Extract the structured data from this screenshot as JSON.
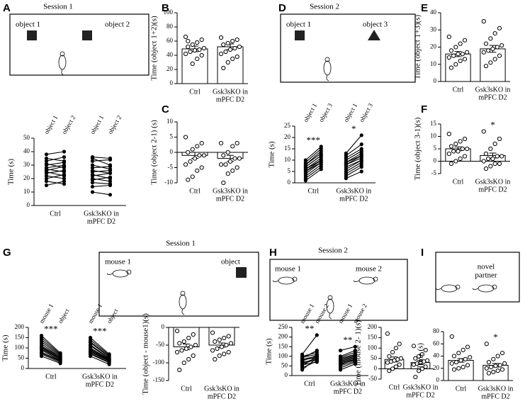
{
  "panel_letters": [
    "A",
    "B",
    "C",
    "D",
    "E",
    "F",
    "G",
    "H",
    "I"
  ],
  "diagrams": [
    {
      "title": "Session 1",
      "labels": [
        "object 1",
        "object 2"
      ]
    },
    {
      "title": "Session 2",
      "labels": [
        "object 1",
        "object 3"
      ]
    },
    {
      "title": "Session 1",
      "labels": [
        "mouse 1",
        "object"
      ]
    },
    {
      "title": "Session 2",
      "labels": [
        "mouse 1",
        "mouse 2"
      ]
    },
    {
      "labels": [
        "novel",
        "partner"
      ]
    }
  ],
  "chart_data": [
    {
      "type": "paired",
      "ylabel": "Time (s)",
      "ylim": [
        0,
        50
      ],
      "yticks": [
        0,
        10,
        20,
        30,
        40,
        50
      ],
      "categories": [
        [
          "Ctrl"
        ],
        [
          "Gsk3sKO in",
          "mPFC D2"
        ]
      ],
      "conditions": [
        [
          "object 1",
          "object 2"
        ],
        [
          "object 1",
          "object 2"
        ]
      ],
      "first": [
        [
          38,
          35,
          33,
          31,
          30,
          28,
          27,
          26,
          25,
          24,
          22,
          20,
          18,
          15
        ],
        [
          36,
          35,
          33,
          30,
          28,
          26,
          25,
          23,
          22,
          20,
          19,
          17,
          14,
          10
        ]
      ],
      "second": [
        [
          40,
          33,
          36,
          28,
          32,
          30,
          25,
          29,
          22,
          26,
          20,
          23,
          16,
          18
        ],
        [
          35,
          30,
          34,
          27,
          29,
          24,
          26,
          20,
          24,
          18,
          21,
          16,
          15,
          8
        ]
      ]
    },
    {
      "type": "bar",
      "ylabel": "Time (object 1+2)(s)",
      "ylim": [
        0,
        100
      ],
      "yticks": [
        0,
        20,
        40,
        60,
        80,
        100
      ],
      "categories": [
        [
          "Ctrl"
        ],
        [
          "Gsk3sKO in",
          "mPFC D2"
        ]
      ],
      "values": [
        49,
        52
      ],
      "errors": [
        4,
        4
      ],
      "points": [
        [
          66,
          62,
          58,
          55,
          52,
          50,
          48,
          47,
          45,
          42,
          40,
          35,
          28,
          60
        ],
        [
          65,
          62,
          60,
          57,
          55,
          52,
          50,
          48,
          45,
          42,
          38,
          35,
          30,
          22
        ]
      ]
    },
    {
      "type": "bar",
      "ylabel": "Time (object 2-1) (s)",
      "ylim": [
        -10,
        10
      ],
      "yticks": [
        -10,
        -5,
        0,
        5,
        10
      ],
      "categories": [
        [
          "Ctrl"
        ],
        [
          "Gsk3sKO in",
          "mPFC D2"
        ]
      ],
      "values": [
        -1,
        -2
      ],
      "errors": [
        1,
        1
      ],
      "points": [
        [
          5,
          3,
          2,
          1,
          0,
          -1,
          -1,
          -2,
          -3,
          -4,
          -5,
          -6,
          -8,
          -9
        ],
        [
          3,
          3,
          2,
          0,
          -1,
          -2,
          -2,
          -3,
          -4,
          -4,
          -5,
          -6,
          -7,
          -10
        ]
      ]
    },
    {
      "type": "paired",
      "ylabel": "Time (s)",
      "ylim": [
        0,
        25
      ],
      "yticks": [
        0,
        5,
        10,
        15,
        20,
        25
      ],
      "categories": [
        [
          "Ctrl"
        ],
        [
          "Gsk3sKO in",
          "mPFC D2"
        ]
      ],
      "conditions": [
        [
          "object 1",
          "object 3"
        ],
        [
          "object 1",
          "object 3"
        ]
      ],
      "stars": [
        "***",
        "*"
      ],
      "first": [
        [
          10,
          9,
          8,
          8,
          7,
          7,
          6,
          6,
          5,
          5,
          4,
          3,
          2,
          1
        ],
        [
          13,
          12,
          11,
          10,
          9,
          9,
          8,
          8,
          7,
          6,
          5,
          4,
          3,
          2
        ]
      ],
      "second": [
        [
          16,
          15,
          14,
          13,
          12,
          12,
          11,
          10,
          10,
          9,
          9,
          8,
          7,
          6
        ],
        [
          21,
          17,
          15,
          14,
          13,
          12,
          12,
          11,
          10,
          10,
          9,
          8,
          7,
          5
        ]
      ]
    },
    {
      "type": "bar",
      "ylabel": "Time (object 1+3)(s)",
      "ylim": [
        0,
        40
      ],
      "yticks": [
        0,
        10,
        20,
        30,
        40
      ],
      "categories": [
        [
          "Ctrl"
        ],
        [
          "Gsk3sKO in",
          "mPFC D2"
        ]
      ],
      "values": [
        16,
        19
      ],
      "errors": [
        1.5,
        2
      ],
      "points": [
        [
          26,
          24,
          22,
          20,
          18,
          17,
          16,
          16,
          15,
          14,
          13,
          12,
          10,
          8
        ],
        [
          35,
          31,
          28,
          25,
          22,
          21,
          20,
          19,
          18,
          17,
          15,
          13,
          11,
          9
        ]
      ]
    },
    {
      "type": "bar",
      "ylabel": "Time (object 3-1)(s)",
      "ylim": [
        -5,
        15
      ],
      "yticks": [
        -5,
        0,
        5,
        10,
        15
      ],
      "categories": [
        [
          "Ctrl"
        ],
        [
          "Gsk3sKO in",
          "mPFC D2"
        ]
      ],
      "values": [
        5,
        2.3
      ],
      "errors": [
        0.8,
        1
      ],
      "stars": [
        null,
        "*"
      ],
      "points": [
        [
          11,
          9,
          8,
          7,
          6,
          5,
          5,
          4,
          4,
          3,
          2,
          1,
          0,
          -1
        ],
        [
          12,
          9,
          7,
          5,
          3,
          2,
          2,
          1,
          1,
          0,
          -1,
          -1,
          -2,
          -3
        ]
      ]
    },
    {
      "type": "paired",
      "ylabel": "Time (s)",
      "ylim": [
        0,
        200
      ],
      "yticks": [
        0,
        50,
        100,
        150,
        200
      ],
      "categories": [
        [
          "Ctrl"
        ],
        [
          "Gsk3sKO in",
          "mPFC D2"
        ]
      ],
      "conditions": [
        [
          "mouse 1",
          "object"
        ],
        [
          "mouse 1",
          "object"
        ]
      ],
      "stars": [
        "***",
        "***"
      ],
      "first": [
        [
          160,
          150,
          140,
          130,
          120,
          110,
          105,
          100,
          95,
          90,
          80,
          75,
          70,
          60
        ],
        [
          150,
          140,
          130,
          125,
          115,
          110,
          100,
          95,
          90,
          85,
          80,
          75,
          70,
          60
        ]
      ],
      "second": [
        [
          75,
          70,
          65,
          60,
          55,
          55,
          50,
          48,
          45,
          40,
          38,
          35,
          30,
          25
        ],
        [
          70,
          65,
          60,
          55,
          50,
          48,
          45,
          42,
          40,
          38,
          35,
          30,
          28,
          20
        ]
      ]
    },
    {
      "type": "bar",
      "ylabel": "Time (object - mouse1)(s)",
      "ylim": [
        -150,
        0
      ],
      "yticks": [
        -150,
        -100,
        -50,
        0
      ],
      "categories": [
        [
          "Ctrl"
        ],
        [
          "Gsk3sKO in",
          "mPFC D2"
        ]
      ],
      "values": [
        -55,
        -50
      ],
      "errors": [
        8,
        6
      ],
      "points": [
        [
          -10,
          -20,
          -30,
          -40,
          -45,
          -50,
          -55,
          -60,
          -65,
          -70,
          -80,
          -90,
          -100,
          -120
        ],
        [
          -15,
          -25,
          -30,
          -35,
          -40,
          -45,
          -50,
          -55,
          -60,
          -65,
          -70,
          -75,
          -80,
          -90
        ]
      ]
    },
    {
      "type": "paired",
      "ylabel": "Time (s)",
      "ylim": [
        0,
        250
      ],
      "yticks": [
        0,
        50,
        100,
        150,
        200,
        250
      ],
      "categories": [
        [
          "Ctrl"
        ],
        [
          "Gsk3sKO in",
          "mPFC D2"
        ]
      ],
      "conditions": [
        [
          "mouse 1",
          "mouse 2"
        ],
        [
          "mouse 1",
          "mouse 2"
        ]
      ],
      "stars": [
        "**",
        "**"
      ],
      "first": [
        [
          110,
          100,
          95,
          90,
          85,
          80,
          75,
          70,
          65,
          60,
          55,
          50,
          40,
          30
        ],
        [
          130,
          100,
          95,
          90,
          85,
          80,
          75,
          70,
          65,
          60,
          55,
          50,
          40,
          30
        ]
      ],
      "second": [
        [
          210,
          120,
          110,
          130,
          100,
          95,
          105,
          80,
          90,
          85,
          70,
          100,
          75,
          90
        ],
        [
          150,
          130,
          120,
          110,
          105,
          100,
          95,
          90,
          85,
          80,
          85,
          75,
          70,
          60
        ]
      ]
    },
    {
      "type": "bar",
      "ylabel": "Time (mouse 2- 1)(s)",
      "ylim": [
        -50,
        200
      ],
      "yticks": [
        -50,
        0,
        50,
        100,
        150,
        200
      ],
      "categories": [
        [
          "Ctrl"
        ],
        [
          "Gsk3sKO in",
          "mPFC D2"
        ]
      ],
      "values": [
        45,
        30
      ],
      "errors": [
        12,
        10
      ],
      "points": [
        [
          170,
          120,
          100,
          80,
          60,
          50,
          45,
          40,
          35,
          30,
          20,
          10,
          0,
          -10
        ],
        [
          110,
          90,
          70,
          60,
          50,
          40,
          35,
          30,
          25,
          20,
          10,
          0,
          -10,
          -40
        ]
      ]
    },
    {
      "type": "bar",
      "ylabel": "Time (s)",
      "ylim": [
        0,
        80
      ],
      "yticks": [
        0,
        20,
        40,
        60,
        80
      ],
      "categories": [
        [
          "Ctrl"
        ],
        [
          "Gsk3sKO in",
          "mPFC D2"
        ]
      ],
      "values": [
        33,
        25
      ],
      "errors": [
        3,
        3
      ],
      "stars": [
        null,
        "*"
      ],
      "points": [
        [
          72,
          55,
          50,
          45,
          40,
          38,
          35,
          33,
          30,
          28,
          25,
          22,
          20,
          18
        ],
        [
          60,
          45,
          40,
          35,
          30,
          28,
          25,
          24,
          22,
          20,
          18,
          16,
          14,
          12
        ]
      ]
    }
  ]
}
